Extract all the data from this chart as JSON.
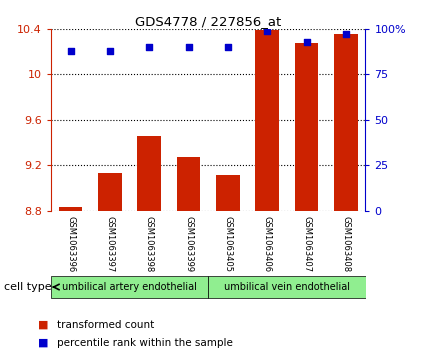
{
  "title": "GDS4778 / 227856_at",
  "samples": [
    "GSM1063396",
    "GSM1063397",
    "GSM1063398",
    "GSM1063399",
    "GSM1063405",
    "GSM1063406",
    "GSM1063407",
    "GSM1063408"
  ],
  "bar_values": [
    8.83,
    9.13,
    9.46,
    9.27,
    9.11,
    10.39,
    10.28,
    10.36
  ],
  "percentile_values": [
    88,
    88,
    90,
    90,
    90,
    99,
    93,
    97
  ],
  "ylim_left": [
    8.8,
    10.4
  ],
  "ylim_right": [
    0,
    100
  ],
  "yticks_left": [
    8.8,
    9.2,
    9.6,
    10.0,
    10.4
  ],
  "yticks_right": [
    0,
    25,
    50,
    75,
    100
  ],
  "bar_color": "#cc2200",
  "dot_color": "#0000cc",
  "bg_color": "#ffffff",
  "tick_area_color": "#c8c8c8",
  "cell_type_color": "#90ee90",
  "cell_type_groups": [
    {
      "label": "umbilical artery endothelial",
      "indices": [
        0,
        1,
        2,
        3
      ]
    },
    {
      "label": "umbilical vein endothelial",
      "indices": [
        4,
        5,
        6,
        7
      ]
    }
  ],
  "cell_type_label": "cell type",
  "legend_items": [
    {
      "label": "transformed count",
      "color": "#cc2200"
    },
    {
      "label": "percentile rank within the sample",
      "color": "#0000cc"
    }
  ]
}
